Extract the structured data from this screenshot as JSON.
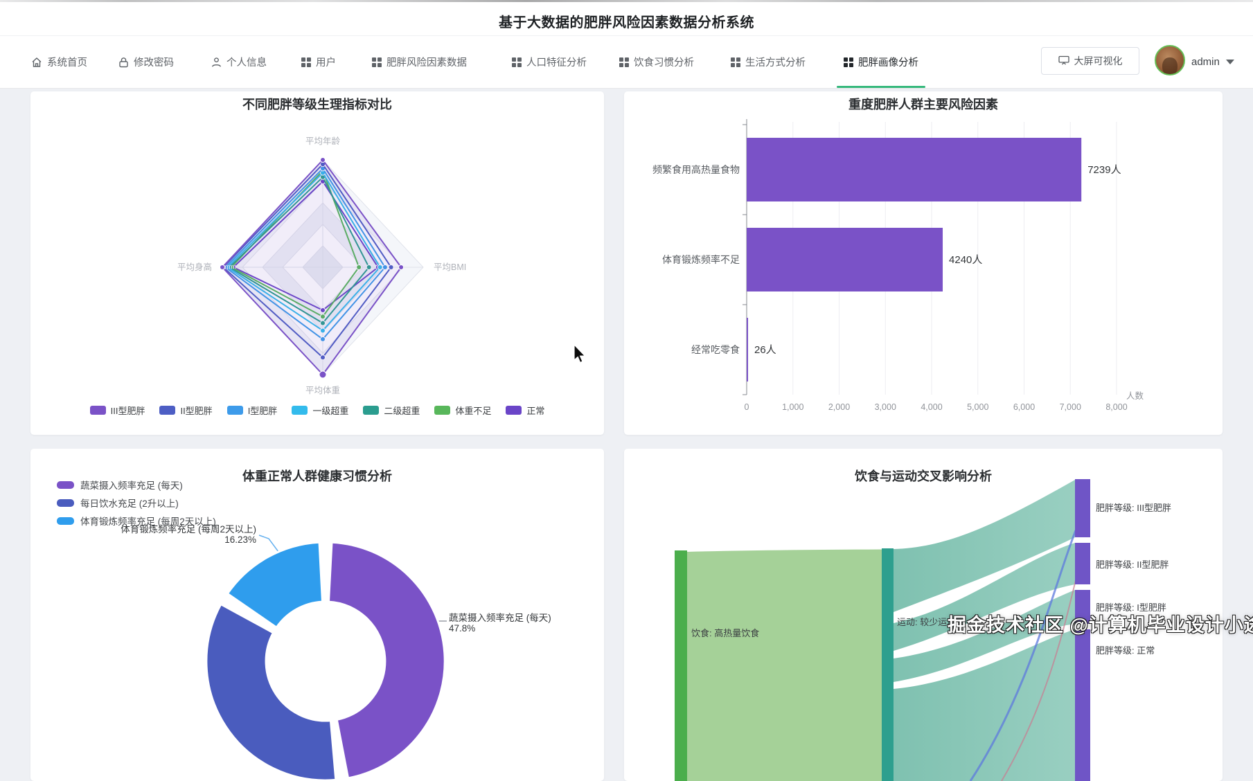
{
  "header": {
    "title": "基于大数据的肥胖风险因素数据分析系统"
  },
  "nav": {
    "items": [
      {
        "label": "系统首页",
        "icon": "home-icon",
        "active": false
      },
      {
        "label": "修改密码",
        "icon": "lock-icon",
        "active": false
      },
      {
        "label": "个人信息",
        "icon": "person-icon",
        "active": false
      },
      {
        "label": "用户",
        "icon": "grid-icon",
        "active": false
      },
      {
        "label": "肥胖风险因素数据",
        "icon": "grid-icon",
        "active": false
      },
      {
        "label": "人口特征分析",
        "icon": "grid-icon",
        "active": false
      },
      {
        "label": "饮食习惯分析",
        "icon": "grid-icon",
        "active": false
      },
      {
        "label": "生活方式分析",
        "icon": "grid-icon",
        "active": false
      },
      {
        "label": "肥胖画像分析",
        "icon": "grid-icon",
        "active": true
      }
    ],
    "big_screen_button": "大屏可视化",
    "username": "admin",
    "accent_green": "#36b97c"
  },
  "watermark": {
    "text": "掘金技术社区 @计算机毕业设计小途"
  },
  "chart_data": [
    {
      "id": "radar",
      "type": "radar",
      "title": "不同肥胖等级生理指标对比",
      "indicators": [
        "平均年龄",
        "平均BMI",
        "平均体重",
        "平均身高"
      ],
      "legend_position": "bottom",
      "series": [
        {
          "name": "III型肥胖",
          "color": "#7a52c7",
          "values": [
            1.0,
            0.78,
            1.0,
            1.0
          ]
        },
        {
          "name": "II型肥胖",
          "color": "#4d5ec4",
          "values": [
            0.96,
            0.68,
            0.84,
            0.99
          ]
        },
        {
          "name": "I型肥胖",
          "color": "#3d9bea",
          "values": [
            0.92,
            0.62,
            0.67,
            0.97
          ]
        },
        {
          "name": "一级超重",
          "color": "#33bbec",
          "values": [
            0.88,
            0.57,
            0.59,
            0.95
          ]
        },
        {
          "name": "二级超重",
          "color": "#2b9d8f",
          "values": [
            0.84,
            0.46,
            0.52,
            0.93
          ]
        },
        {
          "name": "体重不足",
          "color": "#58b75b",
          "values": [
            0.9,
            0.36,
            0.46,
            0.91
          ]
        },
        {
          "name": "正常",
          "color": "#6a45c8",
          "values": [
            0.8,
            0.55,
            0.4,
            0.89
          ]
        }
      ]
    },
    {
      "id": "bar",
      "type": "bar",
      "title": "重度肥胖人群主要风险因素",
      "orientation": "horizontal",
      "categories": [
        "频繁食用高热量食物",
        "体育锻炼频率不足",
        "经常吃零食"
      ],
      "values": [
        7239,
        4240,
        26
      ],
      "value_labels": [
        "7239人",
        "4240人",
        "26人"
      ],
      "xlabel": "人数",
      "xlim": [
        0,
        8000
      ],
      "x_ticks": [
        "0",
        "1,000",
        "2,000",
        "3,000",
        "4,000",
        "5,000",
        "6,000",
        "7,000",
        "8,000"
      ],
      "bar_color": "#7a52c7",
      "grid": true
    },
    {
      "id": "pie",
      "type": "pie",
      "title": "体重正常人群健康习惯分析",
      "inner_radius_ratio": 0.5,
      "slices": [
        {
          "name": "蔬菜摄入频率充足 (每天)",
          "percent": 47.8,
          "label": "47.8%",
          "color": "#7a52c7",
          "label_visible": true
        },
        {
          "name": "每日饮水充足 (2升以上)",
          "percent": 35.97,
          "label": "",
          "color": "#4a5cbe",
          "label_visible": false
        },
        {
          "name": "体育锻炼频率充足 (每周2天以上)",
          "percent": 16.23,
          "label": "16.23%",
          "color": "#2f9ded",
          "label_visible": true
        }
      ]
    },
    {
      "id": "sankey",
      "type": "sankey",
      "title": "饮食与运动交叉影响分析",
      "nodes": [
        {
          "name": "饮食: 高热量饮食",
          "color": "#4bae4c"
        },
        {
          "name": "运动: 较少运动",
          "color": "#2e9f8e"
        },
        {
          "name": "肥胖等级: III型肥胖",
          "color": "#6f55c6"
        },
        {
          "name": "肥胖等级: II型肥胖",
          "color": "#6f55c6"
        },
        {
          "name": "肥胖等级: I型肥胖",
          "color": "#6f55c6"
        },
        {
          "name": "肥胖等级: 正常",
          "color": "#6f55c6"
        }
      ],
      "links": [
        {
          "source": "饮食: 高热量饮食",
          "target": "运动: 较少运动"
        },
        {
          "source": "运动: 较少运动",
          "target": "肥胖等级: III型肥胖"
        },
        {
          "source": "运动: 较少运动",
          "target": "肥胖等级: II型肥胖"
        },
        {
          "source": "运动: 较少运动",
          "target": "肥胖等级: I型肥胖"
        },
        {
          "source": "运动: 较少运动",
          "target": "肥胖等级: 正常"
        }
      ]
    }
  ]
}
